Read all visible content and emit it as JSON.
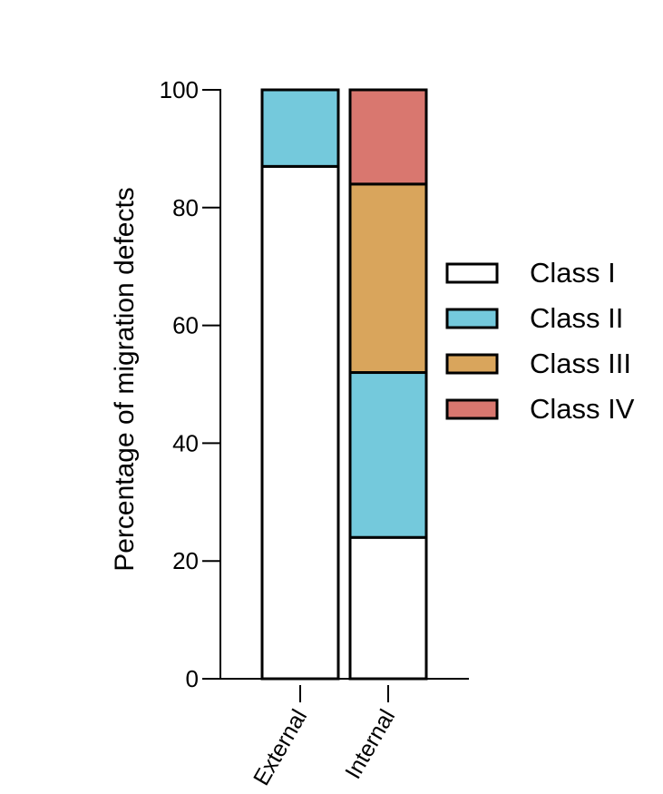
{
  "chart_data": {
    "type": "bar",
    "stacked": true,
    "title": "",
    "xlabel": "",
    "ylabel": "Percentage of migration defects",
    "ylim": [
      0,
      100
    ],
    "yticks": [
      0,
      20,
      40,
      60,
      80,
      100
    ],
    "categories": [
      "External",
      "Internal"
    ],
    "series": [
      {
        "name": "Class I",
        "color": "#ffffff",
        "values": [
          87,
          24
        ]
      },
      {
        "name": "Class II",
        "color": "#74c9dc",
        "values": [
          13,
          28
        ]
      },
      {
        "name": "Class III",
        "color": "#d9a55c",
        "values": [
          0,
          32
        ]
      },
      {
        "name": "Class IV",
        "color": "#d9776f",
        "values": [
          0,
          16
        ]
      }
    ],
    "legend_position": "right",
    "grid": false
  }
}
